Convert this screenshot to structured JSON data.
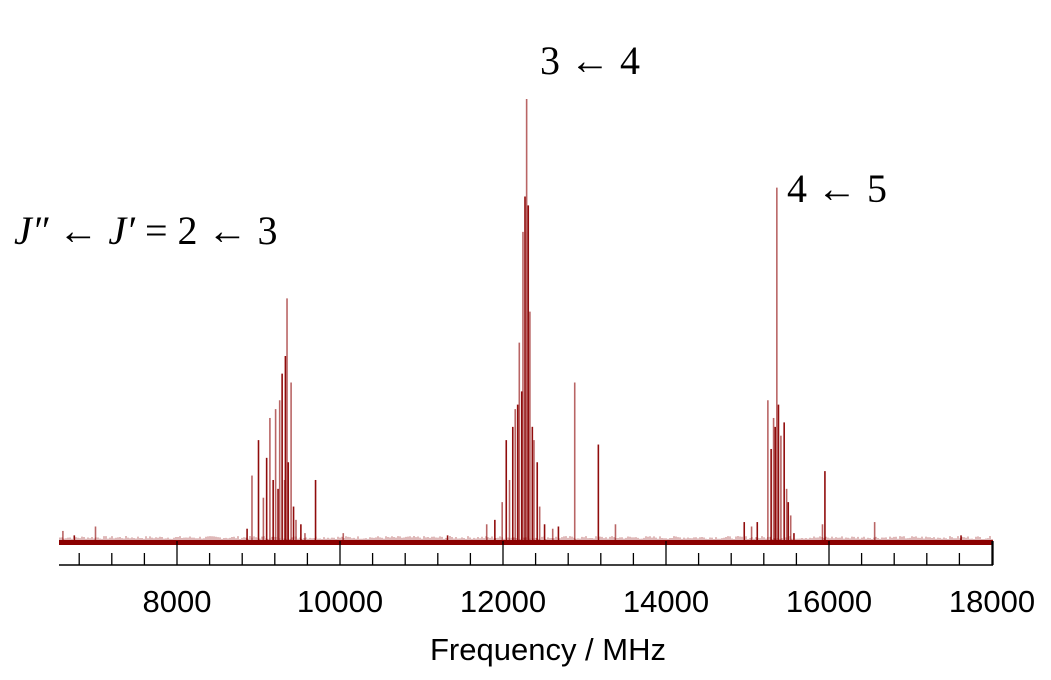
{
  "chart_data": {
    "type": "line",
    "subtype": "stick-spectrum",
    "title": "",
    "xlabel": "Frequency / MHz",
    "ylabel": "",
    "xlim": [
      6550,
      18040
    ],
    "ylim": [
      0,
      1.0
    ],
    "grid": false,
    "legend": null,
    "line_color": "#8B0000",
    "x_ticks_major": [
      8000,
      10000,
      12000,
      14000,
      16000,
      18000
    ],
    "x_tick_labels": [
      "8000",
      "10000",
      "12000",
      "14000",
      "16000",
      "18000"
    ],
    "x_ticks_minor_step": 400,
    "annotations": [
      {
        "text": "J″ ← J′ = 2 ← 3",
        "near_mhz": 9300,
        "label": "J'' <- J' = 2 <- 3"
      },
      {
        "text": "3 ← 4",
        "near_mhz": 12300
      },
      {
        "text": "4 ← 5",
        "near_mhz": 15600
      }
    ],
    "peaks_mhz_intensity": [
      [
        6600,
        0.025
      ],
      [
        6740,
        0.015
      ],
      [
        7000,
        0.035
      ],
      [
        8860,
        0.03
      ],
      [
        8920,
        0.15
      ],
      [
        9000,
        0.23
      ],
      [
        9060,
        0.1
      ],
      [
        9100,
        0.19
      ],
      [
        9140,
        0.28
      ],
      [
        9180,
        0.14
      ],
      [
        9210,
        0.3
      ],
      [
        9240,
        0.12
      ],
      [
        9260,
        0.32
      ],
      [
        9290,
        0.38
      ],
      [
        9320,
        0.14
      ],
      [
        9330,
        0.42
      ],
      [
        9350,
        0.55
      ],
      [
        9365,
        0.18
      ],
      [
        9400,
        0.36
      ],
      [
        9430,
        0.08
      ],
      [
        9460,
        0.05
      ],
      [
        9520,
        0.04
      ],
      [
        9570,
        0.02
      ],
      [
        9700,
        0.14
      ],
      [
        10040,
        0.02
      ],
      [
        11320,
        0.015
      ],
      [
        11800,
        0.04
      ],
      [
        11900,
        0.05
      ],
      [
        11990,
        0.09
      ],
      [
        12040,
        0.23
      ],
      [
        12080,
        0.14
      ],
      [
        12120,
        0.26
      ],
      [
        12150,
        0.3
      ],
      [
        12180,
        0.31
      ],
      [
        12200,
        0.45
      ],
      [
        12230,
        0.34
      ],
      [
        12245,
        0.7
      ],
      [
        12270,
        0.78
      ],
      [
        12290,
        1.0
      ],
      [
        12310,
        0.76
      ],
      [
        12330,
        0.52
      ],
      [
        12360,
        0.26
      ],
      [
        12380,
        0.23
      ],
      [
        12420,
        0.18
      ],
      [
        12450,
        0.08
      ],
      [
        12510,
        0.04
      ],
      [
        12610,
        0.03
      ],
      [
        12680,
        0.035
      ],
      [
        12880,
        0.36
      ],
      [
        13170,
        0.22
      ],
      [
        13380,
        0.04
      ],
      [
        14960,
        0.045
      ],
      [
        15050,
        0.035
      ],
      [
        15120,
        0.045
      ],
      [
        15250,
        0.32
      ],
      [
        15290,
        0.21
      ],
      [
        15320,
        0.28
      ],
      [
        15340,
        0.26
      ],
      [
        15360,
        0.8
      ],
      [
        15380,
        0.31
      ],
      [
        15410,
        0.24
      ],
      [
        15450,
        0.27
      ],
      [
        15480,
        0.12
      ],
      [
        15500,
        0.09
      ],
      [
        15530,
        0.06
      ],
      [
        15570,
        0.02
      ],
      [
        15920,
        0.04
      ],
      [
        15950,
        0.16
      ],
      [
        16560,
        0.045
      ],
      [
        17620,
        0.015
      ]
    ]
  }
}
